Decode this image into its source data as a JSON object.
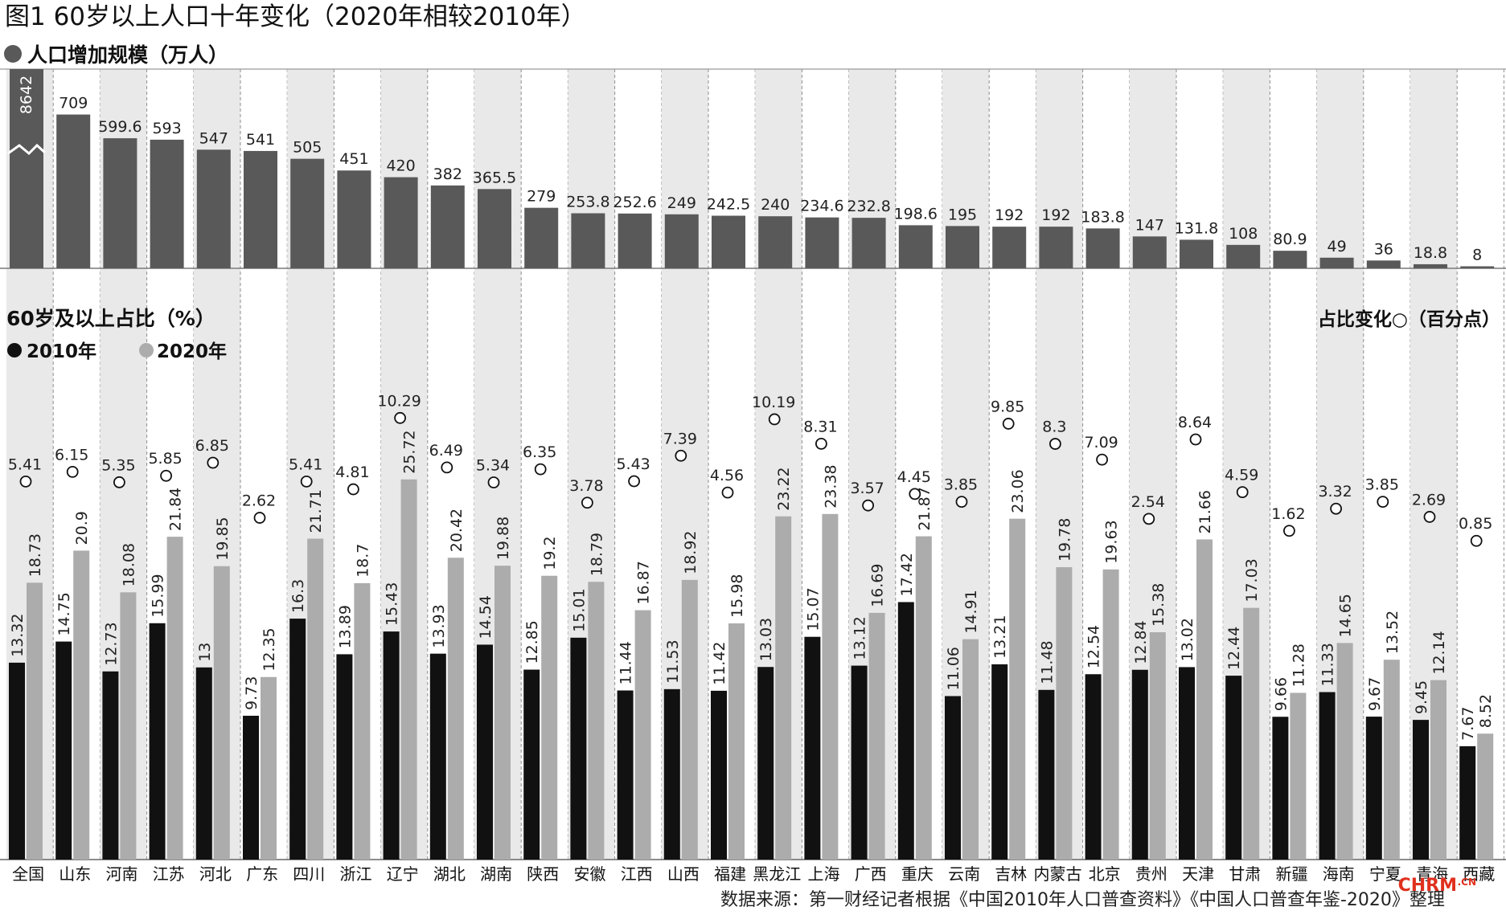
{
  "chart_data": {
    "type": "bar",
    "title": "图1 60岁以上人口十年变化（2020年相较2010年）",
    "source": "数据来源：第一财经记者根据《中国2010年人口普查资料》《中国人口普查年鉴-2020》整理",
    "watermark": "CHRM",
    "watermark_sub": ".CN",
    "categories": [
      "全国",
      "山东",
      "河南",
      "江苏",
      "河北",
      "广东",
      "四川",
      "浙江",
      "辽宁",
      "湖北",
      "湖南",
      "陕西",
      "安徽",
      "江西",
      "山西",
      "福建",
      "黑龙江",
      "上海",
      "广西",
      "重庆",
      "云南",
      "吉林",
      "内蒙古",
      "北京",
      "贵州",
      "天津",
      "甘肃",
      "新疆",
      "海南",
      "宁夏",
      "青海",
      "西藏"
    ],
    "top_panel": {
      "title": "人口增加规模（万人）",
      "series_name": "人口增加规模（万人）",
      "values": [
        "8642",
        "709",
        "599.6",
        "593",
        "547",
        "541",
        "505",
        "451",
        "420",
        "382",
        "365.5",
        "279",
        "253.8",
        "252.6",
        "249",
        "242.5",
        "240",
        "234.6",
        "232.8",
        "198.6",
        "195",
        "192",
        "192",
        "183.8",
        "147",
        "131.8",
        "108",
        "80.9",
        "49",
        "36",
        "18.8",
        "8"
      ],
      "axis_break_value": "8642",
      "color": "#595959"
    },
    "bottom_panel": {
      "title": "60岁及以上占比（%）",
      "series": [
        {
          "name": "2010年",
          "color": "#111111",
          "values": [
            "13.32",
            "14.75",
            "12.73",
            "15.99",
            "13",
            "9.73",
            "16.3",
            "13.89",
            "15.43",
            "13.93",
            "14.54",
            "12.85",
            "15.01",
            "11.44",
            "11.53",
            "11.42",
            "13.03",
            "15.07",
            "13.12",
            "17.42",
            "11.06",
            "13.21",
            "11.48",
            "12.54",
            "12.84",
            "13.02",
            "12.44",
            "9.66",
            "11.33",
            "9.67",
            "9.45",
            "7.67"
          ]
        },
        {
          "name": "2020年",
          "color": "#acacac",
          "values": [
            "18.73",
            "20.9",
            "18.08",
            "21.84",
            "19.85",
            "12.35",
            "21.71",
            "18.7",
            "25.72",
            "20.42",
            "19.88",
            "19.2",
            "18.79",
            "16.87",
            "18.92",
            "15.98",
            "23.22",
            "23.38",
            "16.69",
            "21.87",
            "14.91",
            "23.06",
            "19.78",
            "19.63",
            "15.38",
            "21.66",
            "17.03",
            "11.28",
            "14.65",
            "13.52",
            "12.14",
            "8.52"
          ]
        }
      ],
      "change": {
        "name": "占比变化○（百分点）",
        "values": [
          "5.41",
          "6.15",
          "5.35",
          "5.85",
          "6.85",
          "2.62",
          "5.41",
          "4.81",
          "10.29",
          "6.49",
          "5.34",
          "6.35",
          "3.78",
          "5.43",
          "7.39",
          "4.56",
          "10.19",
          "8.31",
          "3.57",
          "4.45",
          "3.85",
          "9.85",
          "8.3",
          "7.09",
          "2.54",
          "8.64",
          "4.59",
          "1.62",
          "3.32",
          "3.85",
          "2.69",
          "0.85"
        ]
      }
    },
    "grid": false,
    "legend_position": "top-left"
  }
}
